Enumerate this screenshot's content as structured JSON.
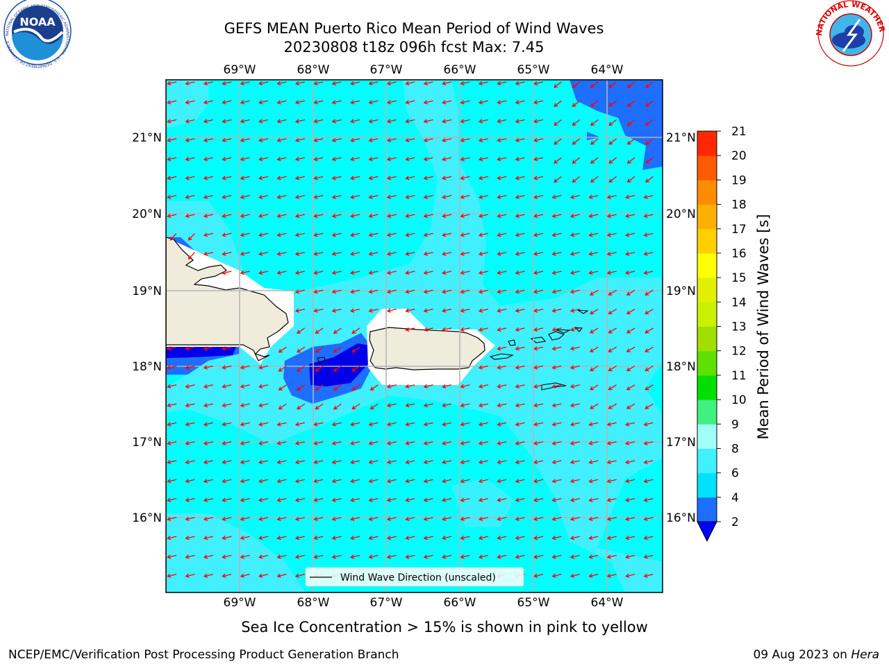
{
  "title": {
    "line1": "GEFS MEAN Puerto Rico Mean Period of Wind Waves",
    "line2": "20230808 t18z 096h fcst   Max: 7.45"
  },
  "map": {
    "lon_ticks": [
      "69°W",
      "68°W",
      "67°W",
      "66°W",
      "65°W",
      "64°W"
    ],
    "lat_ticks": [
      "21°N",
      "20°N",
      "19°N",
      "18°N",
      "17°N",
      "16°N"
    ],
    "legend_label": "Wind Wave Direction (unscaled)",
    "ocean_color": "#00ffff",
    "land_color": "#efecdc",
    "arrow_color": "#ff0000"
  },
  "colorbar": {
    "label": "Mean Period of Wind Waves [s]",
    "ticks": [
      "2",
      "4",
      "6",
      "8",
      "9",
      "10",
      "11",
      "12",
      "13",
      "14",
      "15",
      "16",
      "17",
      "18",
      "19",
      "20",
      "21"
    ],
    "colors": [
      "#1e6eff",
      "#00e0ff",
      "#40f0ff",
      "#a0fff8",
      "#40f080",
      "#00e000",
      "#60e000",
      "#a0e000",
      "#c8f000",
      "#e0f000",
      "#ffff00",
      "#ffd000",
      "#ffb000",
      "#ff8c00",
      "#ff5a00",
      "#ff2800"
    ],
    "under_color": "#0000ff"
  },
  "ice_note": "Sea Ice Concentration > 15% is shown in pink to yellow",
  "footer": {
    "left": "NCEP/EMC/Verification Post Processing Product Generation Branch",
    "date": "09 Aug 2023 on ",
    "machine": "Hera"
  },
  "logos": {
    "noaa": "NOAA",
    "noaa_ring": "NATIONAL OCEANIC AND ATMOSPHERIC ADMINISTRATION · U.S. DEPARTMENT OF COMMERCE",
    "nws_ring": "NATIONAL WEATHER SERVICE"
  }
}
